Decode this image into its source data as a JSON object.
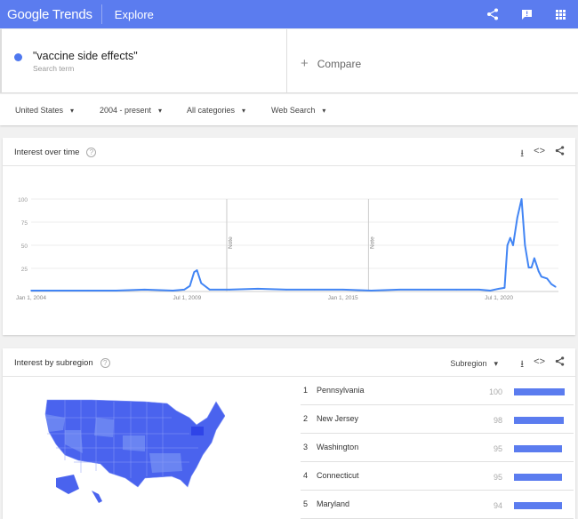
{
  "header": {
    "logo": "Google Trends",
    "title": "Explore",
    "icons": [
      "share-icon",
      "feedback-icon",
      "apps-icon"
    ],
    "color": "#5b7cef"
  },
  "search": {
    "term": "\"vaccine side effects\"",
    "term_sub": "Search term",
    "compare": "Compare",
    "term_color": "#4f78ef"
  },
  "filters": {
    "region": "United States",
    "time": "2004 - present",
    "category": "All categories",
    "type": "Web Search"
  },
  "interest_over_time": {
    "title": "Interest over time"
  },
  "chart_data": {
    "type": "line",
    "title": "Interest over time",
    "x": [
      2004.0,
      2005,
      2006,
      2007,
      2008,
      2009.0,
      2009.4,
      2009.6,
      2009.75,
      2009.85,
      2010.0,
      2010.3,
      2011,
      2012,
      2013,
      2014,
      2015,
      2016,
      2017,
      2018,
      2019,
      2019.8,
      2020.2,
      2020.5,
      2020.7,
      2020.8,
      2020.9,
      2021.0,
      2021.15,
      2021.3,
      2021.42,
      2021.55,
      2021.65,
      2021.75,
      2021.9,
      2022.0,
      2022.2,
      2022.35,
      2022.5
    ],
    "y": [
      1,
      1,
      1,
      1,
      2,
      1,
      2,
      6,
      21,
      23,
      9,
      2,
      2,
      3,
      2,
      2,
      2,
      1,
      2,
      2,
      2,
      2,
      1,
      3,
      4,
      50,
      58,
      50,
      80,
      100,
      50,
      26,
      26,
      36,
      22,
      16,
      14,
      8,
      5
    ],
    "xticks": [
      {
        "v": 2004.0,
        "label": "Jan 1, 2004"
      },
      {
        "v": 2009.5,
        "label": "Jul 1, 2009"
      },
      {
        "v": 2015.0,
        "label": "Jan 1, 2015"
      },
      {
        "v": 2020.5,
        "label": "Jul 1, 2020"
      }
    ],
    "yticks": [
      25,
      50,
      75,
      100
    ],
    "ylim": [
      0,
      100
    ],
    "xlim": [
      2004.0,
      2022.6
    ],
    "notes": [
      {
        "x": 2010.9,
        "label": "Note"
      },
      {
        "x": 2015.9,
        "label": "Note"
      }
    ],
    "line_color": "#4285f4",
    "grid": true
  },
  "interest_by_subregion": {
    "title": "Interest by subregion",
    "selector": "Subregion",
    "rows": [
      {
        "rank": "1",
        "name": "Pennsylvania",
        "value": 100
      },
      {
        "rank": "2",
        "name": "New Jersey",
        "value": 98
      },
      {
        "rank": "3",
        "name": "Washington",
        "value": 95
      },
      {
        "rank": "4",
        "name": "Connecticut",
        "value": 95
      },
      {
        "rank": "5",
        "name": "Maryland",
        "value": 94
      }
    ],
    "map_color": "#4a63ee"
  }
}
